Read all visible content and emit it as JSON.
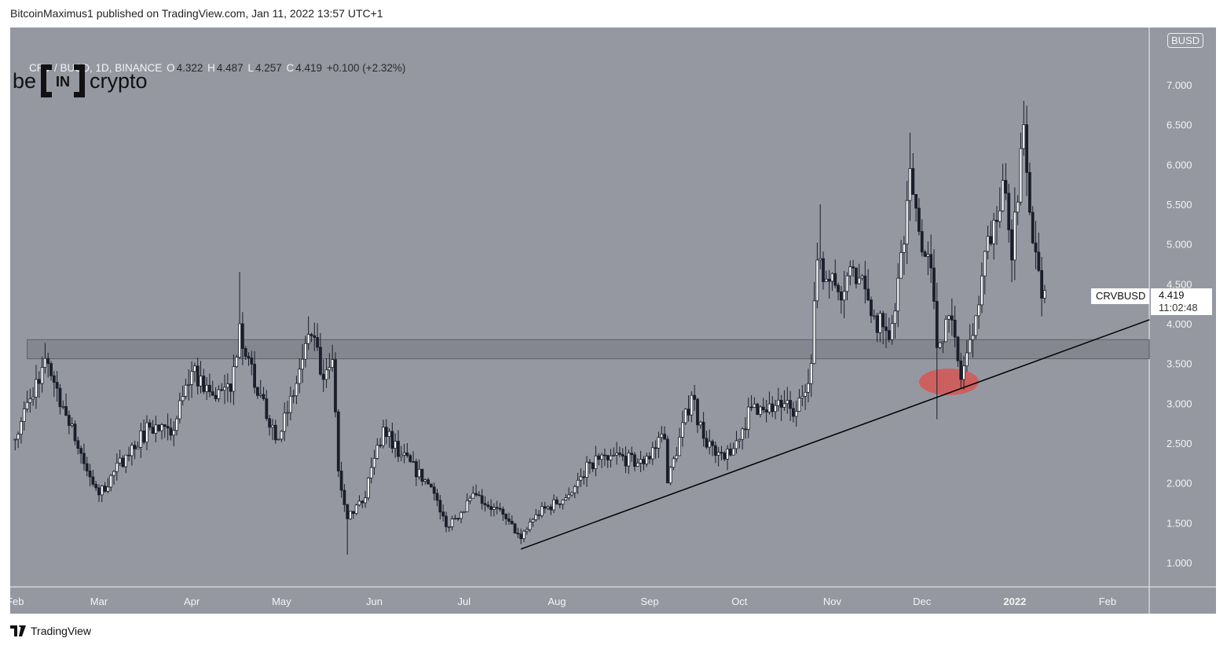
{
  "header": {
    "published": "BitcoinMaximus1 published on TradingView.com, Jan 11, 2022 13:57 UTC+1"
  },
  "legend": {
    "symbol": "CRV / BUSD, 1D, BINANCE",
    "o_label": "O",
    "o": "4.322",
    "h_label": "H",
    "h": "4.487",
    "l_label": "L",
    "l": "4.257",
    "c_label": "C",
    "c": "4.419",
    "change": "+0.100 (+2.32%)"
  },
  "logo": {
    "left": "be",
    "mid": "IN",
    "right": "crypto"
  },
  "currency_badge": "BUSD",
  "price_tag": {
    "symbol": "CRVBUSD",
    "price": "4.419",
    "countdown": "11:02:48"
  },
  "footer": {
    "brand": "TradingView",
    "icon": "tradingview-logo-icon"
  },
  "colors": {
    "background": "#9598a1",
    "candle_up": "#ffffff",
    "candle_down": "#1b1e2b",
    "zone": "#7f828b",
    "highlight": "#d9534f",
    "trendline": "#000000"
  },
  "chart_data": {
    "type": "candlestick",
    "symbol": "CRV/BUSD",
    "interval": "1D",
    "y_axis": {
      "ticks": [
        "1.000",
        "1.500",
        "2.000",
        "2.500",
        "3.000",
        "3.500",
        "4.000",
        "4.500",
        "5.000",
        "5.500",
        "6.000",
        "6.500",
        "7.000"
      ],
      "range": [
        0.7,
        7.6
      ],
      "position": "right"
    },
    "x_axis": {
      "ticks": [
        {
          "label": "Feb",
          "date": "2021-02-01"
        },
        {
          "label": "Mar",
          "date": "2021-03-01"
        },
        {
          "label": "Apr",
          "date": "2021-04-01"
        },
        {
          "label": "May",
          "date": "2021-05-01"
        },
        {
          "label": "Jun",
          "date": "2021-06-01"
        },
        {
          "label": "Jul",
          "date": "2021-07-01"
        },
        {
          "label": "Aug",
          "date": "2021-08-01"
        },
        {
          "label": "Sep",
          "date": "2021-09-01"
        },
        {
          "label": "Oct",
          "date": "2021-10-01"
        },
        {
          "label": "Nov",
          "date": "2021-11-01"
        },
        {
          "label": "Dec",
          "date": "2021-12-01"
        },
        {
          "label": "2022",
          "date": "2022-01-01",
          "bold": true
        },
        {
          "label": "Feb",
          "date": "2022-02-01"
        }
      ],
      "range": [
        "2021-01-31",
        "2022-02-15"
      ]
    },
    "price_path": [
      [
        "2021-02-01",
        2.55
      ],
      [
        "2021-02-08",
        3.3
      ],
      [
        "2021-02-12",
        3.5
      ],
      [
        "2021-02-18",
        2.85
      ],
      [
        "2021-02-25",
        2.15
      ],
      [
        "2021-03-01",
        1.85
      ],
      [
        "2021-03-10",
        2.35
      ],
      [
        "2021-03-18",
        2.7
      ],
      [
        "2021-03-25",
        2.6
      ],
      [
        "2021-04-01",
        3.4
      ],
      [
        "2021-04-08",
        3.1
      ],
      [
        "2021-04-14",
        3.15
      ],
      [
        "2021-04-17",
        4.0
      ],
      [
        "2021-04-22",
        3.2
      ],
      [
        "2021-04-30",
        2.55
      ],
      [
        "2021-05-06",
        3.25
      ],
      [
        "2021-05-11",
        3.85
      ],
      [
        "2021-05-15",
        3.3
      ],
      [
        "2021-05-18",
        3.55
      ],
      [
        "2021-05-20",
        2.15
      ],
      [
        "2021-05-23",
        1.55
      ],
      [
        "2021-05-28",
        1.75
      ],
      [
        "2021-06-04",
        2.7
      ],
      [
        "2021-06-10",
        2.35
      ],
      [
        "2021-06-20",
        1.95
      ],
      [
        "2021-06-25",
        1.45
      ],
      [
        "2021-07-05",
        1.85
      ],
      [
        "2021-07-15",
        1.55
      ],
      [
        "2021-07-20",
        1.3
      ],
      [
        "2021-07-25",
        1.6
      ],
      [
        "2021-08-05",
        1.85
      ],
      [
        "2021-08-12",
        2.25
      ],
      [
        "2021-08-20",
        2.35
      ],
      [
        "2021-08-28",
        2.25
      ],
      [
        "2021-09-06",
        2.55
      ],
      [
        "2021-09-07",
        2.0
      ],
      [
        "2021-09-15",
        3.1
      ],
      [
        "2021-09-20",
        2.45
      ],
      [
        "2021-09-28",
        2.35
      ],
      [
        "2021-10-05",
        2.95
      ],
      [
        "2021-10-15",
        2.95
      ],
      [
        "2021-10-20",
        2.9
      ],
      [
        "2021-10-25",
        3.5
      ],
      [
        "2021-10-27",
        4.8
      ],
      [
        "2021-11-03",
        4.4
      ],
      [
        "2021-11-08",
        4.7
      ],
      [
        "2021-11-15",
        4.1
      ],
      [
        "2021-11-20",
        3.8
      ],
      [
        "2021-11-25",
        5.0
      ],
      [
        "2021-11-27",
        5.95
      ],
      [
        "2021-12-01",
        4.9
      ],
      [
        "2021-12-04",
        4.7
      ],
      [
        "2021-12-06",
        3.7
      ],
      [
        "2021-12-10",
        4.1
      ],
      [
        "2021-12-14",
        3.3
      ],
      [
        "2021-12-17",
        3.8
      ],
      [
        "2021-12-21",
        4.6
      ],
      [
        "2021-12-25",
        5.3
      ],
      [
        "2021-12-28",
        5.8
      ],
      [
        "2021-12-31",
        4.8
      ],
      [
        "2022-01-03",
        6.2
      ],
      [
        "2022-01-04",
        6.5
      ],
      [
        "2022-01-06",
        5.4
      ],
      [
        "2022-01-08",
        4.9
      ],
      [
        "2022-01-10",
        4.32
      ],
      [
        "2022-01-11",
        4.419
      ]
    ],
    "notable_wicks": [
      {
        "date": "2021-04-17",
        "high": 4.65
      },
      {
        "date": "2021-05-23",
        "low": 1.1
      },
      {
        "date": "2021-10-28",
        "high": 5.5
      },
      {
        "date": "2021-11-27",
        "high": 6.4
      },
      {
        "date": "2021-12-06",
        "low": 2.8
      },
      {
        "date": "2022-01-04",
        "high": 6.8
      }
    ],
    "last_candle": {
      "date": "2022-01-11",
      "open": 4.322,
      "high": 4.487,
      "low": 4.257,
      "close": 4.419
    },
    "annotations": {
      "horizontal_zone": {
        "from": "2021-02-05",
        "low": 3.56,
        "high": 3.8
      },
      "trendline": {
        "start": [
          "2021-07-20",
          1.17
        ],
        "end": [
          "2022-02-15",
          4.05
        ]
      },
      "highlight_ellipse": {
        "center": [
          "2021-12-10",
          3.27
        ]
      }
    }
  }
}
